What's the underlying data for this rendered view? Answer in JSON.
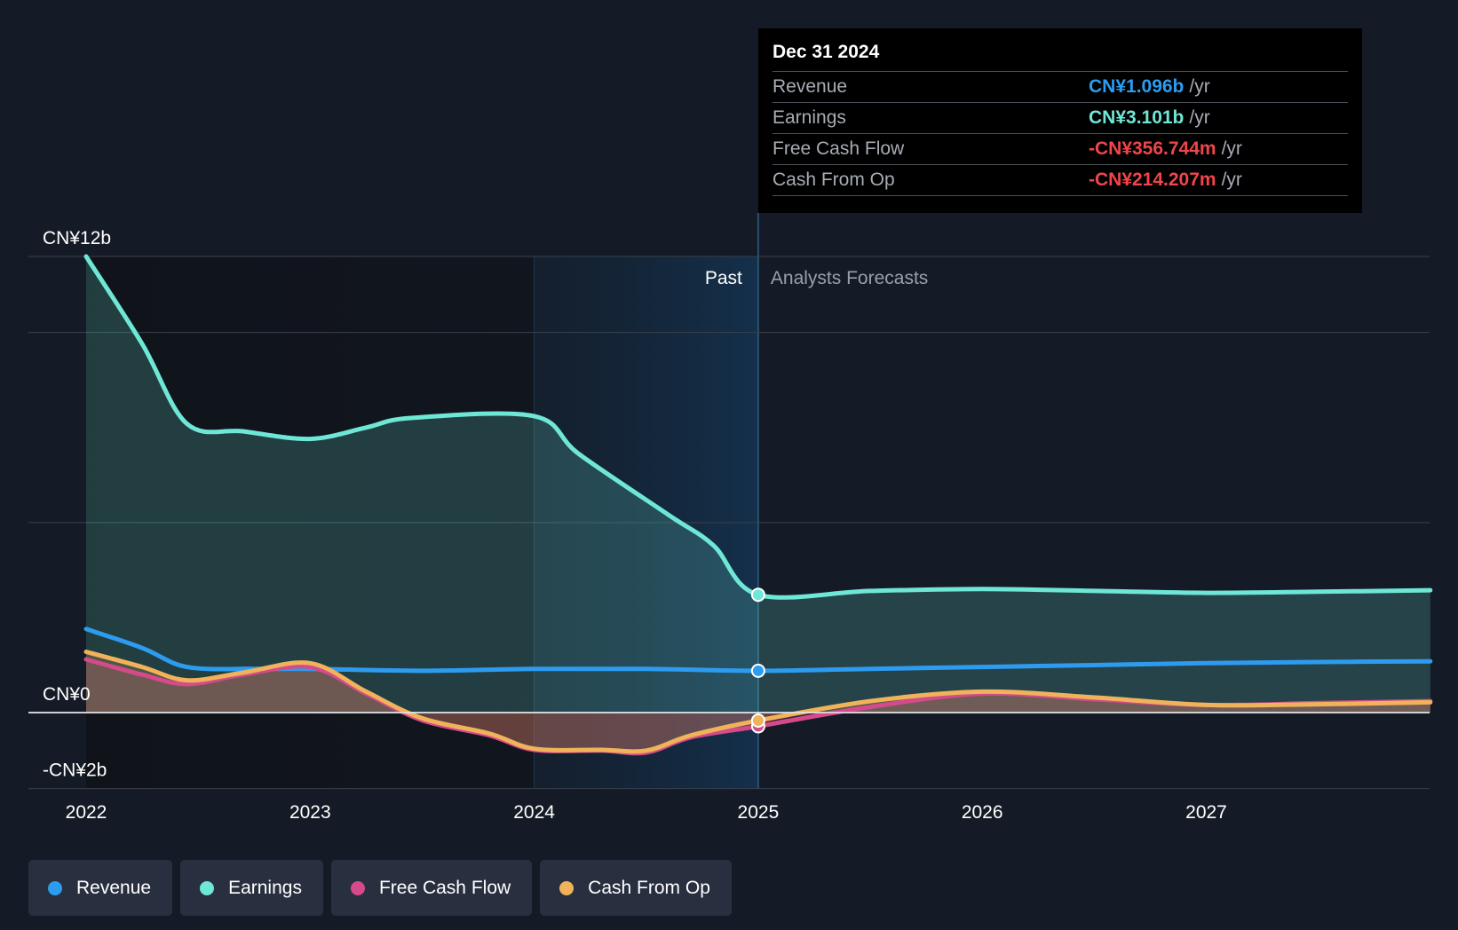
{
  "tooltip": {
    "date": "Dec 31 2024",
    "rows": [
      {
        "label": "Revenue",
        "value": "CN¥1.096b",
        "unit": "/yr",
        "color": "#2d9cf0"
      },
      {
        "label": "Earnings",
        "value": "CN¥3.101b",
        "unit": "/yr",
        "color": "#6ee7d6"
      },
      {
        "label": "Free Cash Flow",
        "value": "-CN¥356.744m",
        "unit": "/yr",
        "color": "#f0454a"
      },
      {
        "label": "Cash From Op",
        "value": "-CN¥214.207m",
        "unit": "/yr",
        "color": "#f0454a"
      }
    ]
  },
  "legend": [
    {
      "label": "Revenue",
      "color": "#2d9cf0"
    },
    {
      "label": "Earnings",
      "color": "#6ee7d6"
    },
    {
      "label": "Free Cash Flow",
      "color": "#d44a8a"
    },
    {
      "label": "Cash From Op",
      "color": "#f0b25a"
    }
  ],
  "chart_data": {
    "type": "line",
    "y_axis_labels": [
      {
        "label": "CN¥12b",
        "value": 12
      },
      {
        "label": "CN¥0",
        "value": 0
      },
      {
        "label": "-CN¥2b",
        "value": -2
      }
    ],
    "ylim": [
      -2,
      12
    ],
    "xlim": [
      2022,
      2028
    ],
    "x_ticks": [
      {
        "label": "2022",
        "value": 2022
      },
      {
        "label": "2023",
        "value": 2023
      },
      {
        "label": "2024",
        "value": 2024
      },
      {
        "label": "2025",
        "value": 2025
      },
      {
        "label": "2026",
        "value": 2026
      },
      {
        "label": "2027",
        "value": 2027
      }
    ],
    "gridlines": [
      12,
      10,
      5,
      0,
      -2
    ],
    "past_label": "Past",
    "forecast_label": "Analysts Forecasts",
    "divider_x": 2025,
    "highlight_start_x": 2024,
    "grid": true,
    "legend_position": "bottom-left",
    "series": [
      {
        "name": "Earnings",
        "color": "#6ee7d6",
        "filled": true,
        "points": [
          [
            2022,
            12.0
          ],
          [
            2022.25,
            9.7
          ],
          [
            2022.45,
            7.6
          ],
          [
            2022.7,
            7.4
          ],
          [
            2023,
            7.2
          ],
          [
            2023.25,
            7.5
          ],
          [
            2023.45,
            7.75
          ],
          [
            2024,
            7.8
          ],
          [
            2024.2,
            6.8
          ],
          [
            2024.6,
            5.2
          ],
          [
            2024.8,
            4.4
          ],
          [
            2025,
            3.1
          ],
          [
            2025.5,
            3.2
          ],
          [
            2026,
            3.25
          ],
          [
            2026.5,
            3.2
          ],
          [
            2027,
            3.15
          ],
          [
            2027.5,
            3.18
          ],
          [
            2028,
            3.22
          ]
        ]
      },
      {
        "name": "Revenue",
        "color": "#2d9cf0",
        "filled": false,
        "points": [
          [
            2022,
            2.2
          ],
          [
            2022.25,
            1.7
          ],
          [
            2022.45,
            1.2
          ],
          [
            2022.75,
            1.15
          ],
          [
            2023,
            1.15
          ],
          [
            2023.5,
            1.1
          ],
          [
            2024,
            1.15
          ],
          [
            2024.5,
            1.15
          ],
          [
            2025,
            1.1
          ],
          [
            2025.5,
            1.15
          ],
          [
            2026,
            1.2
          ],
          [
            2026.5,
            1.25
          ],
          [
            2027,
            1.3
          ],
          [
            2027.5,
            1.33
          ],
          [
            2028,
            1.35
          ]
        ]
      },
      {
        "name": "Free Cash Flow",
        "color": "#d44a8a",
        "filled": true,
        "points": [
          [
            2022,
            1.4
          ],
          [
            2022.25,
            1.0
          ],
          [
            2022.45,
            0.75
          ],
          [
            2022.7,
            1.0
          ],
          [
            2023,
            1.2
          ],
          [
            2023.25,
            0.5
          ],
          [
            2023.5,
            -0.2
          ],
          [
            2023.8,
            -0.6
          ],
          [
            2024,
            -0.98
          ],
          [
            2024.3,
            -1.0
          ],
          [
            2024.5,
            -1.05
          ],
          [
            2024.7,
            -0.65
          ],
          [
            2025,
            -0.36
          ],
          [
            2025.5,
            0.15
          ],
          [
            2026,
            0.5
          ],
          [
            2026.5,
            0.35
          ],
          [
            2027,
            0.2
          ],
          [
            2027.5,
            0.25
          ],
          [
            2028,
            0.3
          ]
        ]
      },
      {
        "name": "Cash From Op",
        "color": "#f0b25a",
        "filled": true,
        "points": [
          [
            2022,
            1.6
          ],
          [
            2022.25,
            1.2
          ],
          [
            2022.45,
            0.85
          ],
          [
            2022.7,
            1.05
          ],
          [
            2023,
            1.3
          ],
          [
            2023.25,
            0.55
          ],
          [
            2023.5,
            -0.15
          ],
          [
            2023.8,
            -0.55
          ],
          [
            2024,
            -0.95
          ],
          [
            2024.3,
            -0.98
          ],
          [
            2024.5,
            -1.0
          ],
          [
            2024.7,
            -0.6
          ],
          [
            2025,
            -0.21
          ],
          [
            2025.5,
            0.3
          ],
          [
            2026,
            0.55
          ],
          [
            2026.5,
            0.4
          ],
          [
            2027,
            0.2
          ],
          [
            2027.5,
            0.22
          ],
          [
            2028,
            0.27
          ]
        ]
      }
    ],
    "markers": [
      {
        "series": "Earnings",
        "x": 2025,
        "y": 3.1
      },
      {
        "series": "Revenue",
        "x": 2025,
        "y": 1.1
      },
      {
        "series": "Free Cash Flow",
        "x": 2025,
        "y": -0.36
      },
      {
        "series": "Cash From Op",
        "x": 2025,
        "y": -0.21
      }
    ]
  }
}
